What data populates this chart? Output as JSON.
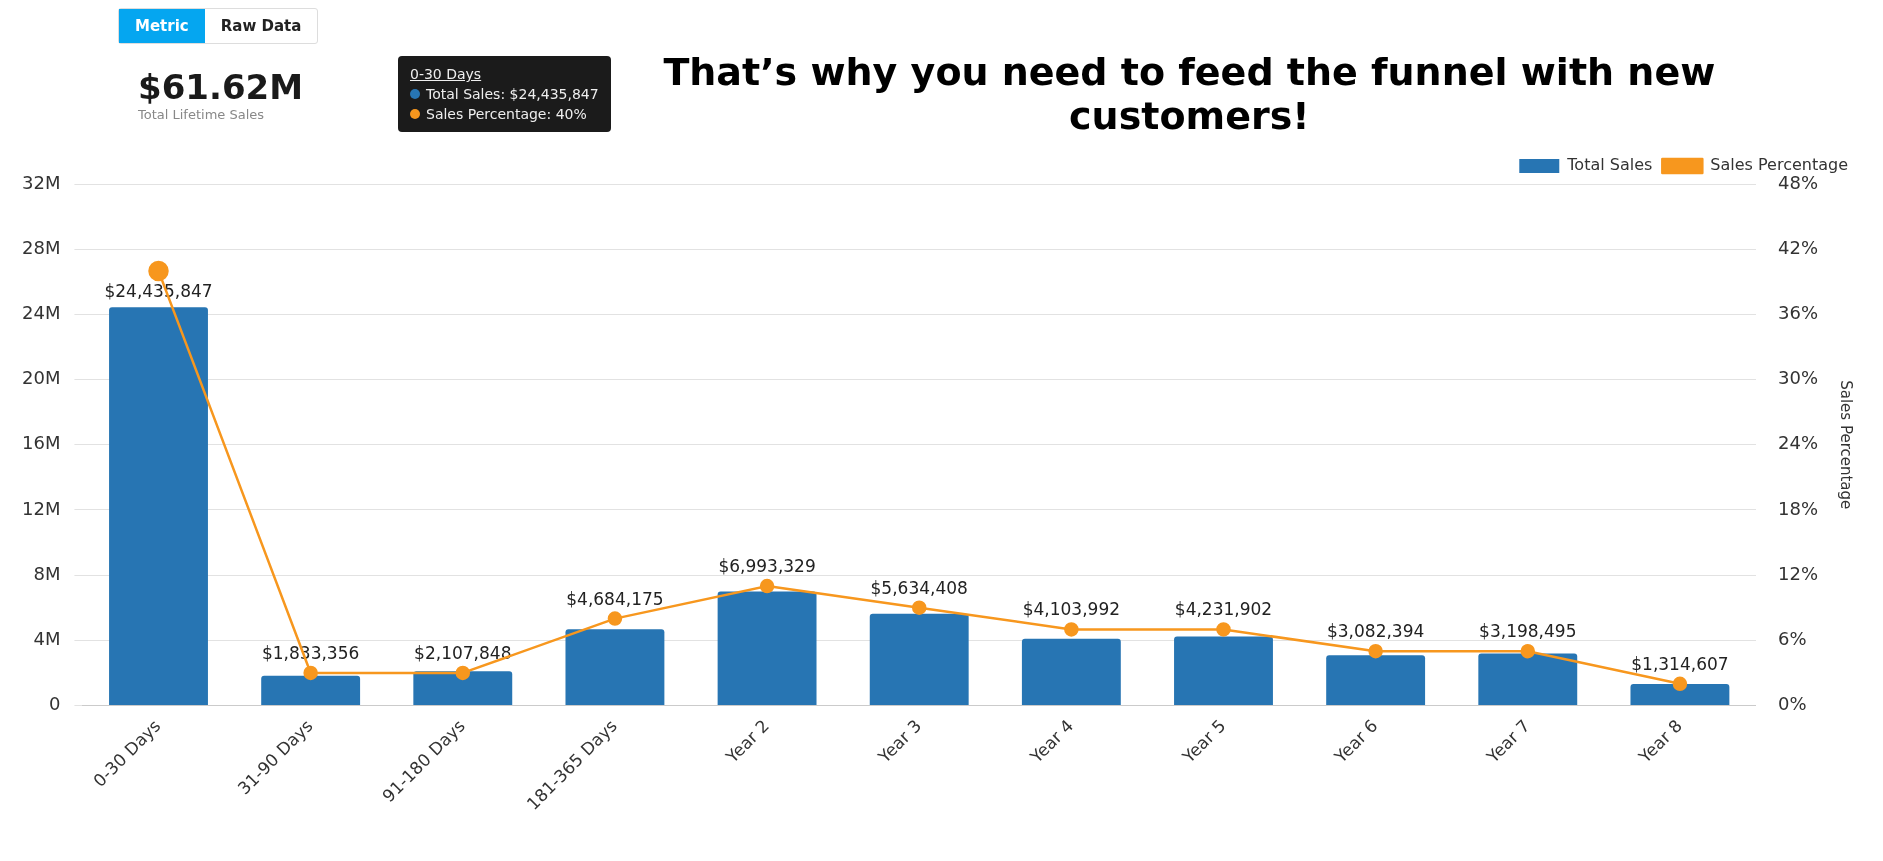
{
  "chart_data": {
    "type": "bar",
    "title": "That’s why you need to feed the funnel with new customers!",
    "categories": [
      "0-30 Days",
      "31-90 Days",
      "91-180 Days",
      "181-365 Days",
      "Year 2",
      "Year 3",
      "Year 4",
      "Year 5",
      "Year 6",
      "Year 7",
      "Year 8"
    ],
    "series": [
      {
        "name": "Total Sales",
        "color": "#2775b3",
        "values": [
          24435847,
          1833356,
          2107848,
          4684175,
          6993329,
          5634408,
          4103992,
          4231902,
          3082394,
          3198495,
          1314607
        ],
        "value_labels": [
          "$24,435,847",
          "$1,833,356",
          "$2,107,848",
          "$4,684,175",
          "$6,993,329",
          "$5,634,408",
          "$4,103,992",
          "$4,231,902",
          "$3,082,394",
          "$3,198,495",
          "$1,314,607"
        ]
      },
      {
        "name": "Sales Percentage",
        "type": "line",
        "axis": "y2",
        "color": "#f7971e",
        "marker": "circle",
        "values": [
          40,
          3,
          3,
          8,
          11,
          9,
          7,
          7,
          5,
          5,
          2
        ]
      }
    ],
    "ylim": [
      0,
      32000000
    ],
    "yticks": [
      0,
      {
        "value": 4000000,
        "label": "4M"
      },
      {
        "value": 8000000,
        "label": "8M"
      },
      {
        "value": 12000000,
        "label": "12M"
      },
      {
        "value": 16000000,
        "label": "16M"
      },
      {
        "value": 20000000,
        "label": "20M"
      },
      {
        "value": 24000000,
        "label": "24M"
      },
      {
        "value": 28000000,
        "label": "28M"
      },
      {
        "value": 32000000,
        "label": "32M"
      }
    ],
    "y2lim": [
      0,
      48
    ],
    "y2ticks": [
      {
        "value": 0,
        "label": "0%"
      },
      {
        "value": 6,
        "label": "6%"
      },
      {
        "value": 12,
        "label": "12%"
      },
      {
        "value": 18,
        "label": "18%"
      },
      {
        "value": 24,
        "label": "24%"
      },
      {
        "value": 30,
        "label": "30%"
      },
      {
        "value": 36,
        "label": "36%"
      },
      {
        "value": 42,
        "label": "42%"
      },
      {
        "value": 48,
        "label": "48%"
      }
    ],
    "y2label": "Sales Percentage",
    "grid": "y",
    "legend": "top right",
    "annotations": [
      "Metric",
      "Raw Data",
      "$61.62M",
      "Total Lifetime Sales",
      "0-30 Days",
      "Total Sales: $24,435,847",
      "Sales Percentage: 40%"
    ]
  }
}
